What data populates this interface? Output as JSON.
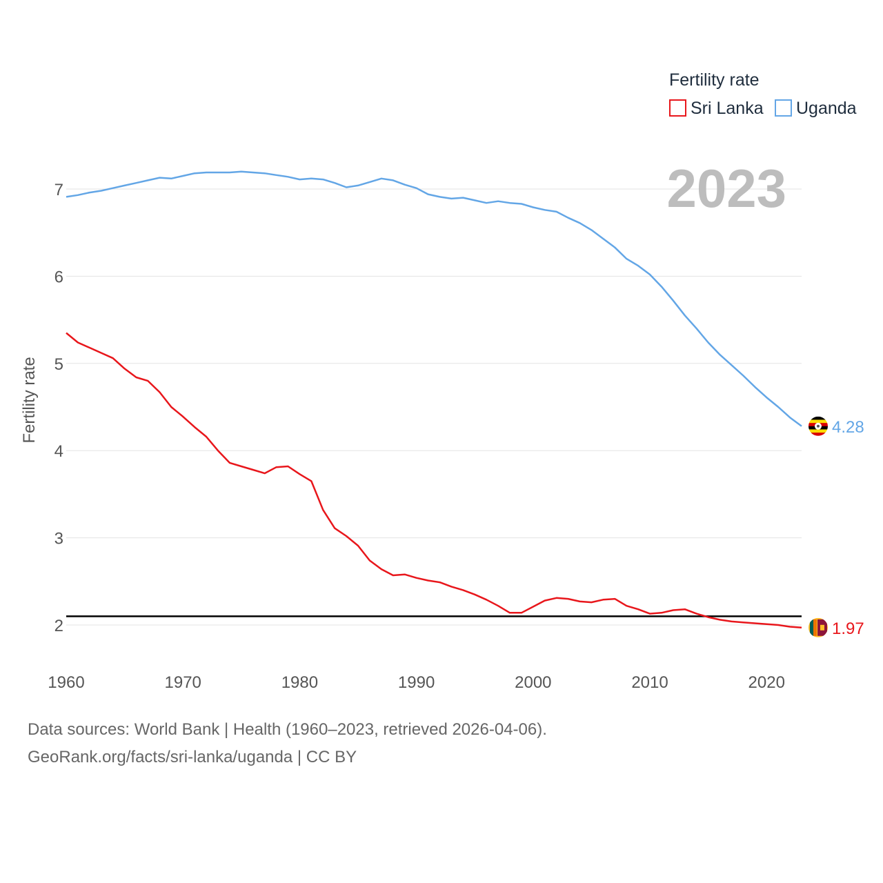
{
  "chart_data": {
    "type": "line",
    "legend_title": "Fertility rate",
    "ylabel": "Fertility rate",
    "year_label": "2023",
    "x": [
      1960,
      1961,
      1962,
      1963,
      1964,
      1965,
      1966,
      1967,
      1968,
      1969,
      1970,
      1971,
      1972,
      1973,
      1974,
      1975,
      1976,
      1977,
      1978,
      1979,
      1980,
      1981,
      1982,
      1983,
      1984,
      1985,
      1986,
      1987,
      1988,
      1989,
      1990,
      1991,
      1992,
      1993,
      1994,
      1995,
      1996,
      1997,
      1998,
      1999,
      2000,
      2001,
      2002,
      2003,
      2004,
      2005,
      2006,
      2007,
      2008,
      2009,
      2010,
      2011,
      2012,
      2013,
      2014,
      2015,
      2016,
      2017,
      2018,
      2019,
      2020,
      2021,
      2022,
      2023
    ],
    "xlim": [
      1960,
      2023
    ],
    "ylim": [
      1.6,
      7.6
    ],
    "x_ticks": [
      1960,
      1970,
      1980,
      1990,
      2000,
      2010,
      2020
    ],
    "y_ticks": [
      2,
      3,
      4,
      5,
      6,
      7
    ],
    "reference_line": {
      "y": 2.1,
      "color": "#000000"
    },
    "series": [
      {
        "name": "Sri Lanka",
        "color": "#e8161b",
        "end_label": "1.97",
        "flag": "sri-lanka-flag-icon",
        "values": [
          5.35,
          5.24,
          5.18,
          5.12,
          5.06,
          4.94,
          4.84,
          4.8,
          4.67,
          4.5,
          4.39,
          4.27,
          4.16,
          4.0,
          3.86,
          3.82,
          3.78,
          3.74,
          3.81,
          3.82,
          3.73,
          3.65,
          3.32,
          3.11,
          3.02,
          2.91,
          2.74,
          2.64,
          2.57,
          2.58,
          2.54,
          2.51,
          2.49,
          2.44,
          2.4,
          2.35,
          2.29,
          2.22,
          2.14,
          2.14,
          2.21,
          2.28,
          2.31,
          2.3,
          2.27,
          2.26,
          2.29,
          2.3,
          2.22,
          2.18,
          2.13,
          2.14,
          2.17,
          2.18,
          2.13,
          2.09,
          2.06,
          2.04,
          2.03,
          2.02,
          2.01,
          2.0,
          1.98,
          1.97
        ]
      },
      {
        "name": "Uganda",
        "color": "#63a6e6",
        "end_label": "4.28",
        "flag": "uganda-flag-icon",
        "values": [
          6.91,
          6.93,
          6.96,
          6.98,
          7.01,
          7.04,
          7.07,
          7.1,
          7.13,
          7.12,
          7.15,
          7.18,
          7.19,
          7.19,
          7.19,
          7.2,
          7.19,
          7.18,
          7.16,
          7.14,
          7.11,
          7.12,
          7.11,
          7.07,
          7.02,
          7.04,
          7.08,
          7.12,
          7.1,
          7.05,
          7.01,
          6.94,
          6.91,
          6.89,
          6.9,
          6.87,
          6.84,
          6.86,
          6.84,
          6.83,
          6.79,
          6.76,
          6.74,
          6.67,
          6.61,
          6.53,
          6.43,
          6.33,
          6.2,
          6.12,
          6.02,
          5.88,
          5.72,
          5.55,
          5.4,
          5.24,
          5.1,
          4.98,
          4.86,
          4.73,
          4.61,
          4.5,
          4.38,
          4.28
        ]
      }
    ]
  },
  "footer": {
    "source": "Data sources: World Bank | Health (1960–2023, retrieved 2026-04-06).",
    "credit": "GeoRank.org/facts/sri-lanka/uganda | CC BY"
  }
}
